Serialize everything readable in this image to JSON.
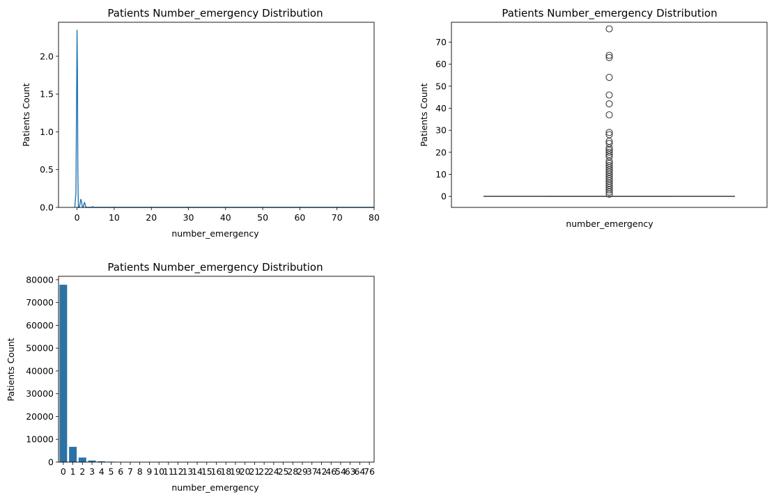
{
  "chart_data": [
    {
      "type": "line",
      "title": "Patients Number_emergency Distribution",
      "xlabel": "number_emergency",
      "ylabel": "Patients Count",
      "xlim": [
        -5,
        80
      ],
      "ylim": [
        0,
        2.45
      ],
      "xticks": [
        0,
        10,
        20,
        30,
        40,
        50,
        60,
        70,
        80
      ],
      "yticks": [
        0.0,
        0.5,
        1.0,
        1.5,
        2.0
      ],
      "ytick_labels": [
        "0.0",
        "0.5",
        "1.0",
        "1.5",
        "2.0"
      ],
      "series": [
        {
          "color": "#1f77b4",
          "x": [
            -0.6,
            -0.3,
            0.0,
            0.1,
            0.2,
            0.35,
            0.6,
            0.8,
            1.0,
            1.2,
            1.4,
            1.6,
            1.8,
            2.0,
            2.2,
            2.4,
            2.6,
            2.8,
            3.0,
            3.5,
            4.0,
            4.2,
            4.5,
            5.0,
            6.0,
            10.0,
            80.0
          ],
          "y": [
            0.0,
            0.2,
            2.35,
            1.8,
            0.5,
            0.0,
            0.0,
            0.05,
            0.11,
            0.08,
            0.01,
            0.0,
            0.03,
            0.07,
            0.03,
            0.0,
            0.0,
            0.0,
            0.0,
            0.0,
            0.0,
            0.01,
            0.0,
            0.0,
            0.0,
            0.0,
            0.0
          ]
        }
      ]
    },
    {
      "type": "box",
      "title": "Patients Number_emergency Distribution",
      "xlabel": "number_emergency",
      "ylabel": "Patients Count",
      "ylim": [
        -5,
        79
      ],
      "yticks": [
        0,
        10,
        20,
        30,
        40,
        50,
        60,
        70
      ],
      "box": {
        "min": 0,
        "q1": 0,
        "median": 0,
        "q3": 0,
        "max": 0,
        "color": "#3d3d3d"
      },
      "outliers": [
        1,
        2,
        3,
        4,
        5,
        6,
        7,
        8,
        9,
        10,
        11,
        12,
        13,
        14,
        15,
        16,
        18,
        19,
        20,
        21,
        22,
        24,
        25,
        28,
        29,
        37,
        42,
        46,
        54,
        63,
        64,
        76
      ]
    },
    {
      "type": "bar",
      "title": "Patients Number_emergency Distribution",
      "xlabel": "number_emergency",
      "ylabel": "Patients Count",
      "ylim": [
        0,
        81500
      ],
      "yticks": [
        0,
        10000,
        20000,
        30000,
        40000,
        50000,
        60000,
        70000,
        80000
      ],
      "color": "#2d72a4",
      "categories": [
        "0",
        "1",
        "2",
        "3",
        "4",
        "5",
        "6",
        "7",
        "8",
        "9",
        "10",
        "11",
        "12",
        "13",
        "14",
        "15",
        "16",
        "18",
        "19",
        "20",
        "21",
        "22",
        "24",
        "25",
        "28",
        "29",
        "37",
        "42",
        "46",
        "54",
        "63",
        "64",
        "76"
      ],
      "values": [
        77800,
        6700,
        2000,
        700,
        370,
        190,
        95,
        75,
        50,
        35,
        35,
        25,
        12,
        12,
        5,
        3,
        5,
        5,
        4,
        4,
        2,
        2,
        1,
        1,
        1,
        1,
        1,
        1,
        1,
        1,
        1,
        1,
        1
      ]
    }
  ]
}
